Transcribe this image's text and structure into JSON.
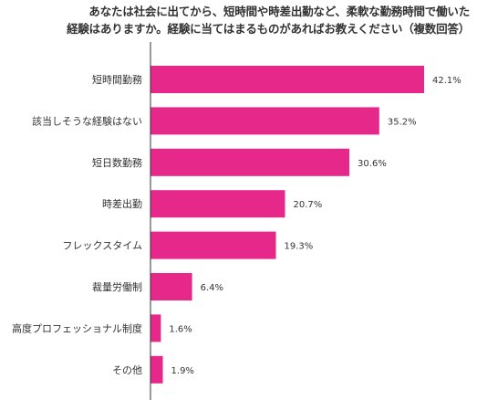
{
  "chart_data": {
    "type": "bar",
    "orientation": "horizontal",
    "title_lines": [
      "あなたは社会に出てから、短時間や時差出勤など、柔軟な勤務時間で働いた",
      "経験はありますか。経験に当てはまるものがあればお教えください（複数回答）"
    ],
    "categories": [
      "短時間勤務",
      "該当しそうな経験はない",
      "短日数勤務",
      "時差出勤",
      "フレックスタイム",
      "裁量労働制",
      "高度プロフェッショナル制度",
      "その他"
    ],
    "values": [
      42.1,
      35.2,
      30.6,
      20.7,
      19.3,
      6.4,
      1.6,
      1.9
    ],
    "value_labels": [
      "42.1%",
      "35.2%",
      "30.6%",
      "20.7%",
      "19.3%",
      "6.4%",
      "1.6%",
      "1.9%"
    ],
    "unit": "%",
    "bar_color": "#e6288a",
    "axis_color": "#333333",
    "grid": false,
    "legend": "none"
  }
}
